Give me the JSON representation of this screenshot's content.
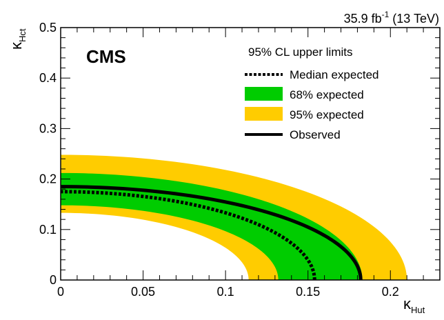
{
  "chart_data": {
    "type": "area",
    "title": "",
    "lumi_label": {
      "main": "35.9 fb",
      "superscript": "-1",
      "suffix": " (13 TeV)"
    },
    "experiment_label": "CMS",
    "xlabel": {
      "symbol": "κ",
      "subscript": "Hut"
    },
    "ylabel": {
      "symbol": "κ",
      "subscript": "Hct"
    },
    "xlim": [
      0,
      0.23
    ],
    "ylim": [
      0,
      0.5
    ],
    "xticks": [
      {
        "value": 0,
        "label": "0"
      },
      {
        "value": 0.05,
        "label": "0.05"
      },
      {
        "value": 0.1,
        "label": "0.1"
      },
      {
        "value": 0.15,
        "label": "0.15"
      },
      {
        "value": 0.2,
        "label": "0.2"
      }
    ],
    "yticks": [
      {
        "value": 0,
        "label": "0"
      },
      {
        "value": 0.1,
        "label": "0.1"
      },
      {
        "value": 0.2,
        "label": "0.2"
      },
      {
        "value": 0.3,
        "label": "0.3"
      },
      {
        "value": 0.4,
        "label": "0.4"
      },
      {
        "value": 0.5,
        "label": "0.5"
      }
    ],
    "legend_title": "95% CL upper limits",
    "legend_placement": "top-right",
    "legend": [
      {
        "label": "Median expected",
        "style": "dashed-line"
      },
      {
        "label": "68% expected",
        "style": "band",
        "color": "#00cc00"
      },
      {
        "label": "95% expected",
        "style": "band",
        "color": "#ffcc00"
      },
      {
        "label": "Observed",
        "style": "solid-line"
      }
    ],
    "colors": {
      "band68": "#00cc00",
      "band95": "#ffcc00",
      "line": "#000000"
    },
    "series": [
      {
        "kind": "band95",
        "inner": {
          "x_intercept": 0.114,
          "y_intercept": 0.133
        },
        "outer": {
          "x_intercept": 0.21,
          "y_intercept": 0.248
        }
      },
      {
        "kind": "band68",
        "inner": {
          "x_intercept": 0.132,
          "y_intercept": 0.148
        },
        "outer": {
          "x_intercept": 0.183,
          "y_intercept": 0.212
        }
      },
      {
        "kind": "median",
        "x_intercept": 0.154,
        "y_intercept": 0.175
      },
      {
        "kind": "observed",
        "x_intercept": 0.182,
        "y_intercept": 0.185
      }
    ]
  }
}
